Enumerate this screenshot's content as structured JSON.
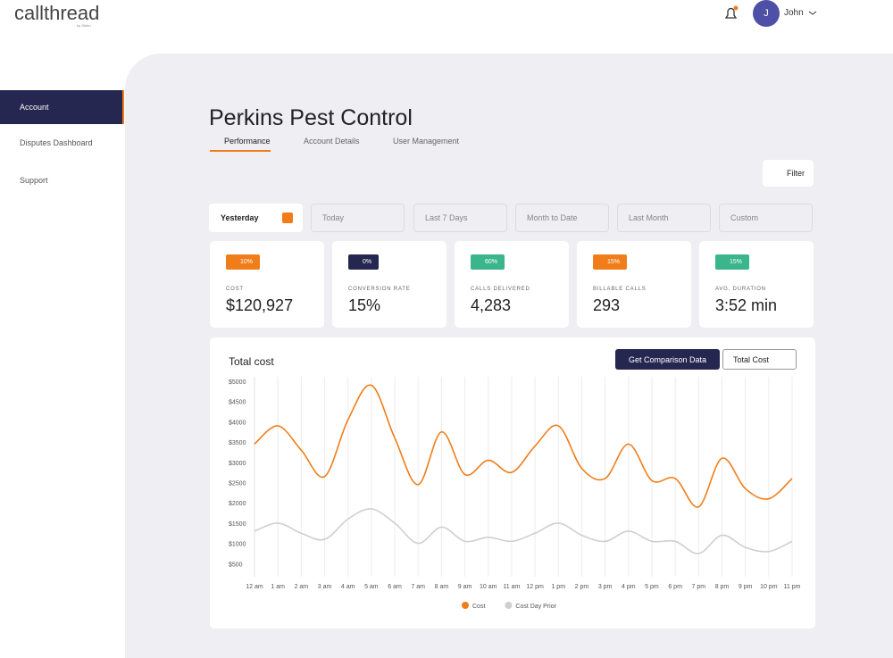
{
  "header": {
    "logo": "callthread",
    "logo_sub": "by Sirlen",
    "avatar_initial": "J",
    "user": "John"
  },
  "sidebar": {
    "items": [
      "Account",
      "Disputes Dashboard",
      "Support"
    ]
  },
  "page": {
    "title": "Perkins Pest Control",
    "tabs": [
      "Performance",
      "Account Details",
      "User Management"
    ],
    "filter": "Filter",
    "ranges": [
      "Yesterday",
      "Today",
      "Last 7 Days",
      "Month to Date",
      "Last Month",
      "Custom"
    ]
  },
  "kpis": [
    {
      "badge": "10%",
      "label": "COST",
      "value": "$120,927"
    },
    {
      "badge": "0%",
      "label": "CONVERSION RATE",
      "value": "15%"
    },
    {
      "badge": "60%",
      "label": "CALLS DELIVERED",
      "value": "4,283"
    },
    {
      "badge": "15%",
      "label": "BILLABLE CALLS",
      "value": "293"
    },
    {
      "badge": "15%",
      "label": "AVG. DURATION",
      "value": "3:52 min"
    }
  ],
  "chart": {
    "type": "line",
    "title": "Total cost",
    "button": "Get Comparison Data",
    "dropdown": "Total Cost",
    "categories": [
      "12 am",
      "1 am",
      "2 am",
      "3 am",
      "4 am",
      "5 am",
      "6 am",
      "7 am",
      "8 am",
      "9 am",
      "10 am",
      "11 am",
      "12 pm",
      "1 pm",
      "2 pm",
      "3 pm",
      "4 pm",
      "5 pm",
      "6 pm",
      "7 pm",
      "8 pm",
      "9 pm",
      "10 pm",
      "11 pm"
    ],
    "series": [
      {
        "name": "Cost",
        "color": "#f07d1a",
        "values": [
          3450,
          3900,
          3300,
          2650,
          4050,
          4900,
          3600,
          2450,
          3750,
          2700,
          3050,
          2750,
          3400,
          3900,
          2850,
          2600,
          3450,
          2550,
          2600,
          1900,
          3100,
          2350,
          2100,
          2600
        ]
      },
      {
        "name": "Cost Day Prior",
        "color": "#cfcfcf",
        "values": [
          1300,
          1500,
          1250,
          1100,
          1600,
          1850,
          1500,
          1000,
          1400,
          1050,
          1150,
          1050,
          1250,
          1500,
          1200,
          1050,
          1300,
          1050,
          1050,
          750,
          1200,
          900,
          800,
          1050
        ]
      }
    ],
    "ylim": [
      0,
      5000
    ],
    "yticks": [
      {
        "value": 500,
        "label": "$500"
      },
      {
        "value": 1000,
        "label": "$1000"
      },
      {
        "value": 1500,
        "label": "$1500"
      },
      {
        "value": 2000,
        "label": "$2000"
      },
      {
        "value": 2500,
        "label": "$2500"
      },
      {
        "value": 3000,
        "label": "$3000"
      },
      {
        "value": 3500,
        "label": "$3500"
      },
      {
        "value": 4000,
        "label": "$4000"
      },
      {
        "value": 4500,
        "label": "$4500"
      },
      {
        "value": 5000,
        "label": "$5000"
      }
    ],
    "grid": true,
    "legend": "bottom"
  }
}
